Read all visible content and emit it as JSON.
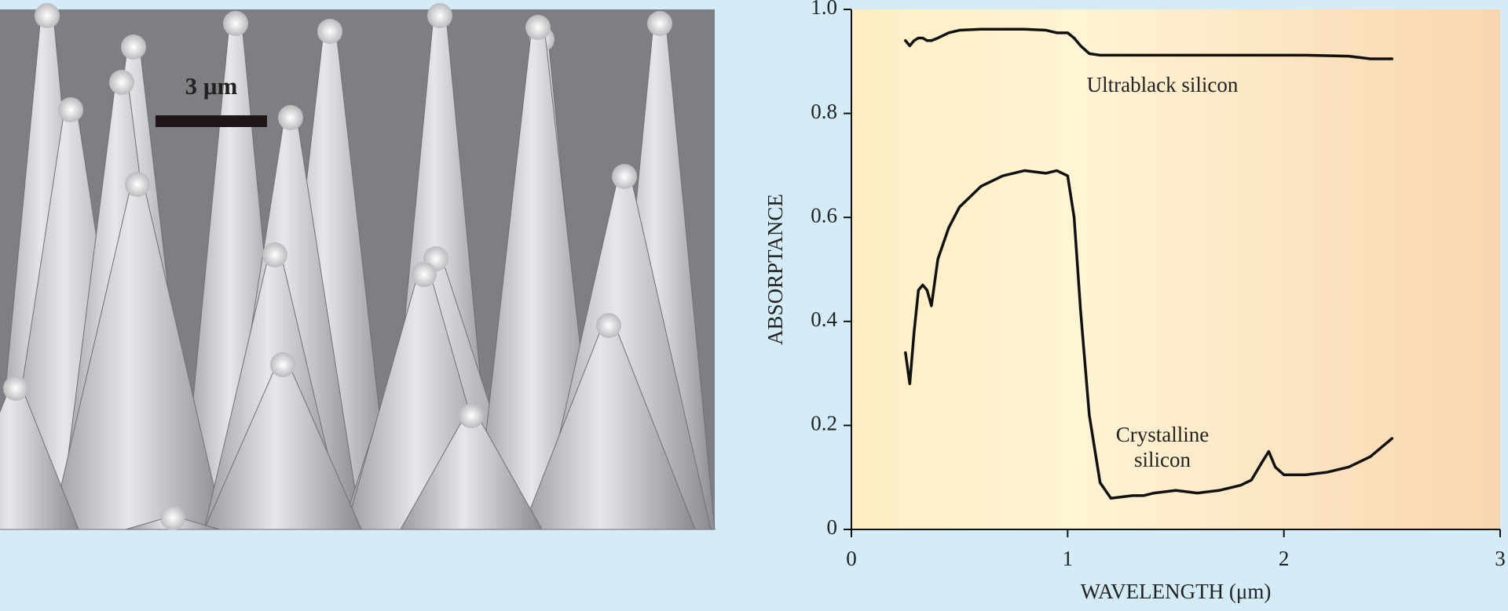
{
  "micrograph": {
    "scale_label": "3 μm"
  },
  "chart_data": {
    "type": "line",
    "xlabel": "WAVELENGTH (μm)",
    "ylabel": "ABSORPTANCE",
    "x": [
      0.25,
      0.27,
      0.29,
      0.31,
      0.33,
      0.35,
      0.37,
      0.4,
      0.45,
      0.5,
      0.6,
      0.7,
      0.8,
      0.9,
      0.95,
      1.0,
      1.03,
      1.06,
      1.1,
      1.15,
      1.2,
      1.3,
      1.35,
      1.4,
      1.5,
      1.6,
      1.7,
      1.8,
      1.85,
      1.9,
      1.93,
      1.96,
      2.0,
      2.1,
      2.2,
      2.3,
      2.4,
      2.5
    ],
    "series": [
      {
        "name": "Ultrablack silicon",
        "color": "#111111",
        "values": [
          0.94,
          0.93,
          0.94,
          0.945,
          0.945,
          0.94,
          0.94,
          0.945,
          0.955,
          0.96,
          0.962,
          0.962,
          0.962,
          0.96,
          0.955,
          0.955,
          0.945,
          0.93,
          0.915,
          0.912,
          0.912,
          0.912,
          0.912,
          0.912,
          0.912,
          0.912,
          0.912,
          0.912,
          0.912,
          0.912,
          0.912,
          0.912,
          0.912,
          0.912,
          0.911,
          0.91,
          0.905,
          0.905
        ]
      },
      {
        "name": "Crystalline silicon",
        "color": "#111111",
        "values": [
          0.34,
          0.28,
          0.38,
          0.46,
          0.47,
          0.46,
          0.43,
          0.52,
          0.58,
          0.62,
          0.66,
          0.68,
          0.69,
          0.685,
          0.69,
          0.68,
          0.6,
          0.42,
          0.22,
          0.09,
          0.06,
          0.065,
          0.065,
          0.07,
          0.075,
          0.07,
          0.075,
          0.085,
          0.095,
          0.13,
          0.15,
          0.12,
          0.105,
          0.105,
          0.11,
          0.12,
          0.14,
          0.175
        ]
      }
    ],
    "xlim": [
      0,
      3
    ],
    "xticks": [
      0,
      1,
      2,
      3
    ],
    "ylim": [
      0,
      1
    ],
    "yticks": [
      0,
      0.2,
      0.4,
      0.6,
      0.8,
      {
        "value": 1,
        "label": "1.0"
      }
    ]
  }
}
